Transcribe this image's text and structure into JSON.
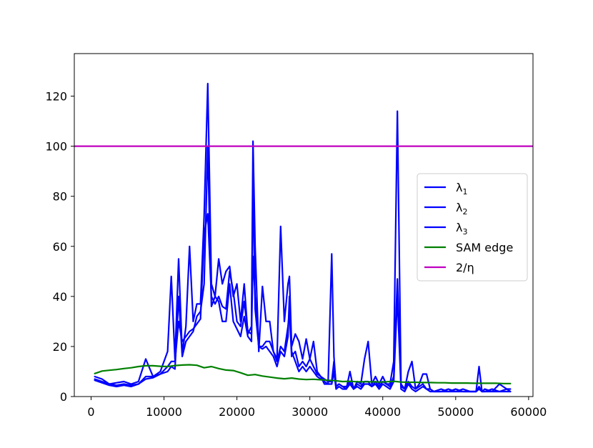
{
  "chart_data": {
    "type": "line",
    "title": "",
    "xlabel": "",
    "ylabel": "",
    "xlim": [
      -2300,
      60600
    ],
    "ylim": [
      0,
      137
    ],
    "xticks": [
      0,
      10000,
      20000,
      30000,
      40000,
      50000,
      60000
    ],
    "xtick_labels": [
      "0",
      "10000",
      "20000",
      "30000",
      "40000",
      "50000",
      "60000"
    ],
    "yticks": [
      0,
      20,
      40,
      60,
      80,
      100,
      120
    ],
    "ytick_labels": [
      "0",
      "20",
      "40",
      "60",
      "80",
      "100",
      "120"
    ],
    "grid": false,
    "legend": {
      "placement": "center-right",
      "entries": [
        {
          "label": "λ",
          "subscript": "1",
          "color": "#0000ff"
        },
        {
          "label": "λ",
          "subscript": "2",
          "color": "#0000ff"
        },
        {
          "label": "λ",
          "subscript": "3",
          "color": "#0000ff"
        },
        {
          "label": "SAM edge",
          "color": "#008000"
        },
        {
          "label": "2/η",
          "color": "#bf00bf"
        }
      ]
    },
    "hline": {
      "y": 100,
      "color": "#bf00bf"
    },
    "series": [
      {
        "color": "#0000ff",
        "x": [
          500,
          1500,
          2500,
          3500,
          4500,
          5500,
          6500,
          7500,
          8500,
          9500,
          10500,
          11000,
          11500,
          12000,
          12500,
          13000,
          13500,
          14000,
          14500,
          15000,
          15500,
          16000,
          16500,
          17000,
          17500,
          18000,
          18500,
          19000,
          19500,
          20000,
          20500,
          21000,
          21500,
          22000,
          22200,
          22500,
          23000,
          23500,
          24000,
          24500,
          25000,
          25500,
          26000,
          26500,
          27000,
          27200,
          27500,
          28000,
          28500,
          29000,
          29500,
          30000,
          30500,
          31000,
          31500,
          32000,
          32500,
          33000,
          33300,
          33600,
          34000,
          34500,
          35000,
          35500,
          36000,
          36500,
          37000,
          37500,
          38000,
          38500,
          39000,
          39500,
          40000,
          40500,
          41000,
          41500,
          42000,
          42500,
          43000,
          43500,
          44000,
          44500,
          45000,
          45500,
          46000,
          46500,
          47000,
          48000,
          49000,
          50000,
          51000,
          52000,
          52800,
          53200,
          53600,
          54000,
          55000,
          56000,
          57000,
          57500
        ],
        "y": [
          8,
          7,
          5,
          5.5,
          6,
          5,
          6,
          15,
          8,
          10,
          18,
          48,
          15,
          55,
          17,
          28,
          60,
          30,
          37,
          37,
          72,
          125,
          45,
          40,
          55,
          45,
          50,
          52,
          40,
          45,
          30,
          45,
          25,
          28,
          102,
          60,
          18,
          44,
          30,
          30,
          18,
          15,
          68,
          30,
          45,
          48,
          20,
          25,
          22,
          15,
          23,
          15,
          22,
          10,
          8,
          5,
          5,
          57,
          16,
          4,
          5,
          4,
          3,
          10,
          3,
          6,
          5,
          15,
          22,
          5,
          8,
          5,
          8,
          5,
          5,
          14,
          114,
          5,
          3,
          10,
          14,
          3,
          5,
          9,
          9,
          3,
          2,
          2,
          3,
          2,
          3,
          2,
          2,
          12,
          2,
          3,
          2,
          5,
          3,
          2
        ]
      },
      {
        "color": "#0000ff",
        "x": [
          500,
          1500,
          2500,
          3500,
          4500,
          5500,
          6500,
          7500,
          8500,
          9500,
          10500,
          11000,
          11500,
          12000,
          12500,
          13000,
          13500,
          14000,
          14500,
          15000,
          15500,
          16000,
          16500,
          17000,
          17500,
          18000,
          18500,
          19000,
          19500,
          20000,
          20500,
          21000,
          21500,
          22000,
          22200,
          22500,
          23000,
          23500,
          24000,
          24500,
          25000,
          25500,
          26000,
          26500,
          27000,
          27200,
          27500,
          28000,
          28500,
          29000,
          29500,
          30000,
          30500,
          31000,
          31500,
          32000,
          32500,
          33000,
          33300,
          33600,
          34000,
          34500,
          35000,
          35500,
          36000,
          36500,
          37000,
          37500,
          38000,
          38500,
          39000,
          39500,
          40000,
          40500,
          41000,
          41500,
          42000,
          42500,
          43000,
          43500,
          44000,
          44500,
          45000,
          45500,
          46000,
          46500,
          47000,
          48000,
          49000,
          50000,
          51000,
          52000,
          52800,
          53200,
          53600,
          54000,
          55000,
          56000,
          57000,
          57500
        ],
        "y": [
          7,
          6,
          5,
          4.5,
          5,
          4.5,
          5,
          8,
          8,
          9,
          12,
          14,
          14,
          30,
          22,
          24,
          26,
          27,
          29,
          31,
          65,
          73,
          40,
          37,
          40,
          36,
          35,
          50,
          42,
          30,
          28,
          38,
          26,
          25,
          56,
          40,
          20,
          20,
          22,
          22,
          18,
          14,
          20,
          18,
          28,
          34,
          16,
          18,
          12,
          14,
          12,
          15,
          12,
          9,
          8,
          7,
          6,
          6,
          14,
          4,
          5,
          4,
          4,
          6,
          3,
          5,
          4,
          6,
          6,
          4,
          6,
          4,
          6,
          5,
          4,
          8,
          47,
          4,
          3,
          6,
          4,
          3,
          4,
          5,
          3,
          3,
          2,
          3,
          2,
          3,
          2,
          2,
          2,
          4,
          2,
          2,
          3,
          2,
          3,
          3
        ]
      },
      {
        "color": "#0000ff",
        "x": [
          500,
          1500,
          2500,
          3500,
          4500,
          5500,
          6500,
          7500,
          8500,
          9500,
          10500,
          11000,
          11500,
          12000,
          12500,
          13000,
          13500,
          14000,
          14500,
          15000,
          15500,
          16000,
          16500,
          17000,
          17500,
          18000,
          18500,
          19000,
          19500,
          20000,
          20500,
          21000,
          21500,
          22000,
          22200,
          22500,
          23000,
          23500,
          24000,
          24500,
          25000,
          25500,
          26000,
          26500,
          27000,
          27200,
          27500,
          28000,
          28500,
          29000,
          29500,
          30000,
          30500,
          31000,
          31500,
          32000,
          32500,
          33000,
          33300,
          33600,
          34000,
          34500,
          35000,
          35500,
          36000,
          36500,
          37000,
          37500,
          38000,
          38500,
          39000,
          39500,
          40000,
          40500,
          41000,
          41500,
          42000,
          42500,
          43000,
          43500,
          44000,
          44500,
          45000,
          45500,
          46000,
          46500,
          47000,
          48000,
          49000,
          50000,
          51000,
          52000,
          52800,
          53200,
          53600,
          54000,
          55000,
          56000,
          57000,
          57500
        ],
        "y": [
          6.5,
          5.5,
          4.5,
          4,
          4.5,
          4,
          5,
          7,
          7.5,
          9,
          10,
          12,
          11,
          40,
          16,
          22,
          24,
          26,
          32,
          34,
          45,
          100,
          36,
          40,
          38,
          30,
          30,
          45,
          30,
          27,
          24,
          32,
          24,
          22,
          90,
          35,
          20,
          19,
          20,
          18,
          16,
          12,
          18,
          16,
          24,
          40,
          18,
          14,
          10,
          12,
          10,
          12,
          10,
          8,
          7,
          6,
          5,
          5,
          10,
          3,
          4,
          3,
          3,
          5,
          3,
          4,
          3,
          5,
          5,
          4,
          5,
          3,
          5,
          4,
          3,
          6,
          40,
          3,
          2,
          5,
          3,
          2,
          3,
          4,
          3,
          2,
          2,
          2,
          2,
          2,
          2,
          2,
          2,
          3,
          2,
          2,
          2,
          2,
          2,
          2
        ]
      },
      {
        "color": "#008000",
        "x": [
          500,
          1500,
          2500,
          3500,
          4500,
          5500,
          6500,
          7500,
          8500,
          9500,
          10500,
          11500,
          12500,
          13500,
          14500,
          15500,
          16500,
          17500,
          18500,
          19500,
          20500,
          21500,
          22500,
          23500,
          24500,
          25500,
          26500,
          27500,
          28500,
          29500,
          30500,
          31500,
          32500,
          33500,
          34500,
          35500,
          36500,
          37500,
          38500,
          39500,
          40500,
          41500,
          42500,
          43500,
          44500,
          45500,
          46500,
          47500,
          48500,
          49500,
          50500,
          51500,
          52500,
          53500,
          54500,
          55500,
          56500,
          57500
        ],
        "y": [
          9.2,
          10.2,
          10.5,
          10.8,
          11.2,
          11.5,
          12,
          12.3,
          12.3,
          12.1,
          12,
          12.4,
          12.6,
          12.7,
          12.5,
          11.5,
          12,
          11.2,
          10.6,
          10.4,
          9.5,
          8.5,
          8.8,
          8.2,
          7.8,
          7.4,
          7.1,
          7.4,
          7,
          6.8,
          6.9,
          6.7,
          6.5,
          6.3,
          6,
          6.1,
          5.9,
          5.9,
          5.9,
          5.8,
          5.9,
          6.1,
          5.8,
          5.7,
          5.7,
          5.6,
          5.6,
          5.5,
          5.5,
          5.4,
          5.4,
          5.4,
          5.3,
          5.3,
          5.3,
          5.3,
          5.2,
          5.2
        ]
      }
    ]
  }
}
